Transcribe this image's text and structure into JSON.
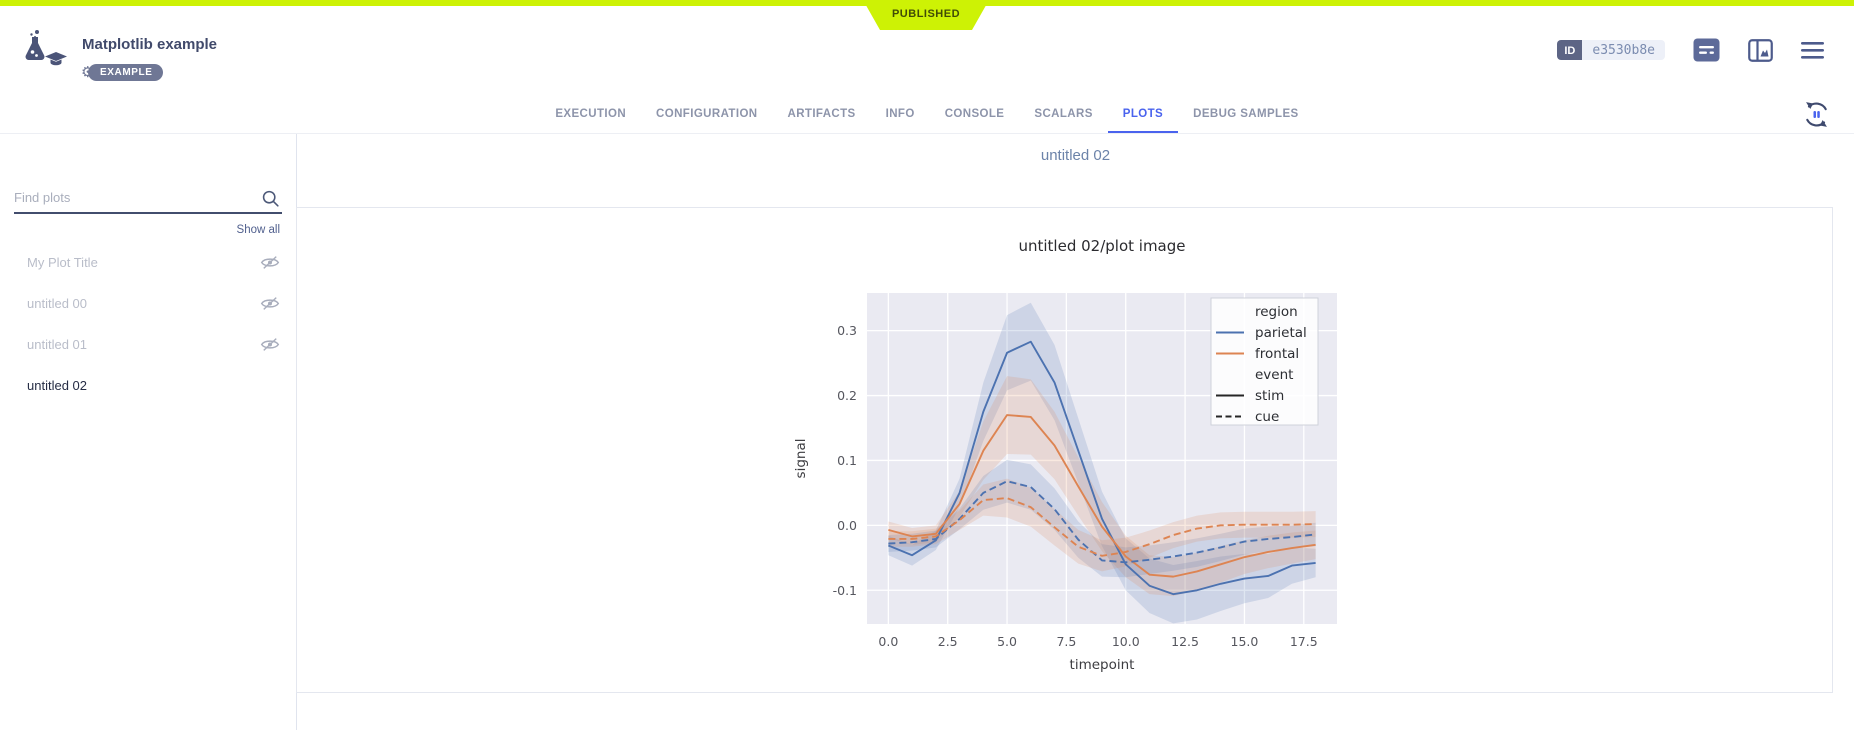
{
  "header": {
    "status_ribbon": "PUBLISHED",
    "title": "Matplotlib example",
    "badge": "EXAMPLE",
    "id_label": "ID",
    "id_value": "e3530b8e"
  },
  "tabs": {
    "items": [
      {
        "label": "EXECUTION",
        "active": false
      },
      {
        "label": "CONFIGURATION",
        "active": false
      },
      {
        "label": "ARTIFACTS",
        "active": false
      },
      {
        "label": "INFO",
        "active": false
      },
      {
        "label": "CONSOLE",
        "active": false
      },
      {
        "label": "SCALARS",
        "active": false
      },
      {
        "label": "PLOTS",
        "active": true
      },
      {
        "label": "DEBUG SAMPLES",
        "active": false
      }
    ]
  },
  "sidebar": {
    "search_placeholder": "Find plots",
    "show_all": "Show all",
    "items": [
      {
        "label": "My Plot Title",
        "hidden": true,
        "selected": false
      },
      {
        "label": "untitled 00",
        "hidden": true,
        "selected": false
      },
      {
        "label": "untitled 01",
        "hidden": true,
        "selected": false
      },
      {
        "label": "untitled 02",
        "hidden": false,
        "selected": true
      }
    ]
  },
  "main": {
    "section_title": "untitled 02"
  },
  "icons": {
    "logo": "flask-and-graduation-cap",
    "badge_left": "gear",
    "header_icons": [
      "details-list",
      "side-panel-chart",
      "hamburger-menu"
    ],
    "tab_bar_right": "auto-refresh-pause",
    "search": "magnifier",
    "plot_visibility": "eye-off"
  },
  "colors": {
    "accent": "#cdf205",
    "tab_active": "#4a63ee",
    "series_blue": "#4c72b0",
    "series_orange": "#dd8452",
    "plot_background": "#eaeaf2"
  },
  "chart_data": {
    "type": "line",
    "title": "untitled 02/plot image",
    "xlabel": "timepoint",
    "ylabel": "signal",
    "xlim": [
      -0.9,
      18.9
    ],
    "ylim": [
      -0.152,
      0.358
    ],
    "xticks": [
      0.0,
      2.5,
      5.0,
      7.5,
      10.0,
      12.5,
      15.0,
      17.5
    ],
    "yticks": [
      -0.1,
      0.0,
      0.1,
      0.2,
      0.3
    ],
    "grid": true,
    "background": "#eaeaf2",
    "x": [
      0,
      1,
      2,
      3,
      4,
      5,
      6,
      7,
      8,
      9,
      10,
      11,
      12,
      13,
      14,
      15,
      16,
      17,
      18
    ],
    "series": [
      {
        "name": "parietal-stim",
        "region": "parietal",
        "event": "stim",
        "color": "#4c72b0",
        "style": "solid",
        "values": [
          -0.031,
          -0.046,
          -0.023,
          0.05,
          0.175,
          0.266,
          0.283,
          0.22,
          0.115,
          0.01,
          -0.06,
          -0.093,
          -0.106,
          -0.1,
          -0.09,
          -0.082,
          -0.078,
          -0.062,
          -0.058
        ],
        "ci": [
          0.015,
          0.016,
          0.015,
          0.022,
          0.045,
          0.058,
          0.06,
          0.058,
          0.05,
          0.042,
          0.04,
          0.042,
          0.045,
          0.045,
          0.042,
          0.038,
          0.034,
          0.028,
          0.022
        ]
      },
      {
        "name": "frontal-stim",
        "region": "frontal",
        "event": "stim",
        "color": "#dd8452",
        "style": "solid",
        "values": [
          -0.007,
          -0.017,
          -0.013,
          0.033,
          0.115,
          0.17,
          0.167,
          0.123,
          0.06,
          -0.002,
          -0.048,
          -0.076,
          -0.079,
          -0.071,
          -0.06,
          -0.049,
          -0.041,
          -0.035,
          -0.03
        ],
        "ci": [
          0.013,
          0.013,
          0.013,
          0.02,
          0.045,
          0.06,
          0.058,
          0.052,
          0.045,
          0.038,
          0.032,
          0.03,
          0.03,
          0.029,
          0.028,
          0.026,
          0.025,
          0.024,
          0.022
        ]
      },
      {
        "name": "parietal-cue",
        "region": "parietal",
        "event": "cue",
        "color": "#4c72b0",
        "style": "dashed",
        "values": [
          -0.028,
          -0.026,
          -0.021,
          0.01,
          0.05,
          0.068,
          0.059,
          0.025,
          -0.022,
          -0.054,
          -0.057,
          -0.053,
          -0.048,
          -0.042,
          -0.034,
          -0.025,
          -0.021,
          -0.018,
          -0.014
        ],
        "ci": [
          0.013,
          0.013,
          0.013,
          0.016,
          0.026,
          0.033,
          0.035,
          0.032,
          0.028,
          0.025,
          0.023,
          0.022,
          0.022,
          0.022,
          0.021,
          0.02,
          0.019,
          0.018,
          0.018
        ]
      },
      {
        "name": "frontal-cue",
        "region": "frontal",
        "event": "cue",
        "color": "#dd8452",
        "style": "dashed",
        "values": [
          -0.021,
          -0.021,
          -0.017,
          0.008,
          0.039,
          0.042,
          0.028,
          -0.003,
          -0.033,
          -0.047,
          -0.041,
          -0.029,
          -0.015,
          -0.005,
          0.0,
          0.001,
          0.001,
          0.001,
          0.002
        ],
        "ci": [
          0.012,
          0.012,
          0.012,
          0.015,
          0.024,
          0.03,
          0.03,
          0.028,
          0.026,
          0.024,
          0.022,
          0.021,
          0.02,
          0.02,
          0.02,
          0.02,
          0.02,
          0.02,
          0.02
        ]
      }
    ],
    "legend": {
      "position": "upper right",
      "entries": [
        {
          "header": "region"
        },
        {
          "label": "parietal",
          "color": "#4c72b0",
          "style": "solid"
        },
        {
          "label": "frontal",
          "color": "#dd8452",
          "style": "solid"
        },
        {
          "header": "event"
        },
        {
          "label": "stim",
          "color": "#262626",
          "style": "solid"
        },
        {
          "label": "cue",
          "color": "#262626",
          "style": "dashed"
        }
      ]
    }
  }
}
